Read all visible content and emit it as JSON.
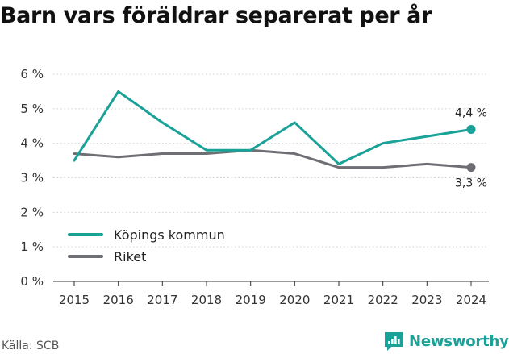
{
  "title": "Barn vars föräldrar separerat per år",
  "source": "Källa: SCB",
  "brand": {
    "name": "Newsworthy",
    "icon": "newsworthy-logo-icon",
    "color": "#1aa198"
  },
  "chart_data": {
    "type": "line",
    "title": "Barn vars föräldrar separerat per år",
    "xlabel": "",
    "ylabel": "",
    "x": [
      2015,
      2016,
      2017,
      2018,
      2019,
      2020,
      2021,
      2022,
      2023,
      2024
    ],
    "ylim": [
      0,
      6
    ],
    "yticks": [
      0,
      1,
      2,
      3,
      4,
      5,
      6
    ],
    "ytick_labels": [
      "0 %",
      "1 %",
      "2 %",
      "3 %",
      "4 %",
      "5 %",
      "6 %"
    ],
    "grid": "horizontal-dotted",
    "legend_position": "bottom-left",
    "series": [
      {
        "name": "Köpings kommun",
        "color": "#1aa198",
        "values": [
          3.5,
          5.5,
          4.6,
          3.8,
          3.8,
          4.6,
          3.4,
          4.0,
          4.2,
          4.4
        ],
        "end_label": "4,4 %"
      },
      {
        "name": "Riket",
        "color": "#6e6e75",
        "values": [
          3.7,
          3.6,
          3.7,
          3.7,
          3.8,
          3.7,
          3.3,
          3.3,
          3.4,
          3.3
        ],
        "end_label": "3,3 %"
      }
    ]
  }
}
